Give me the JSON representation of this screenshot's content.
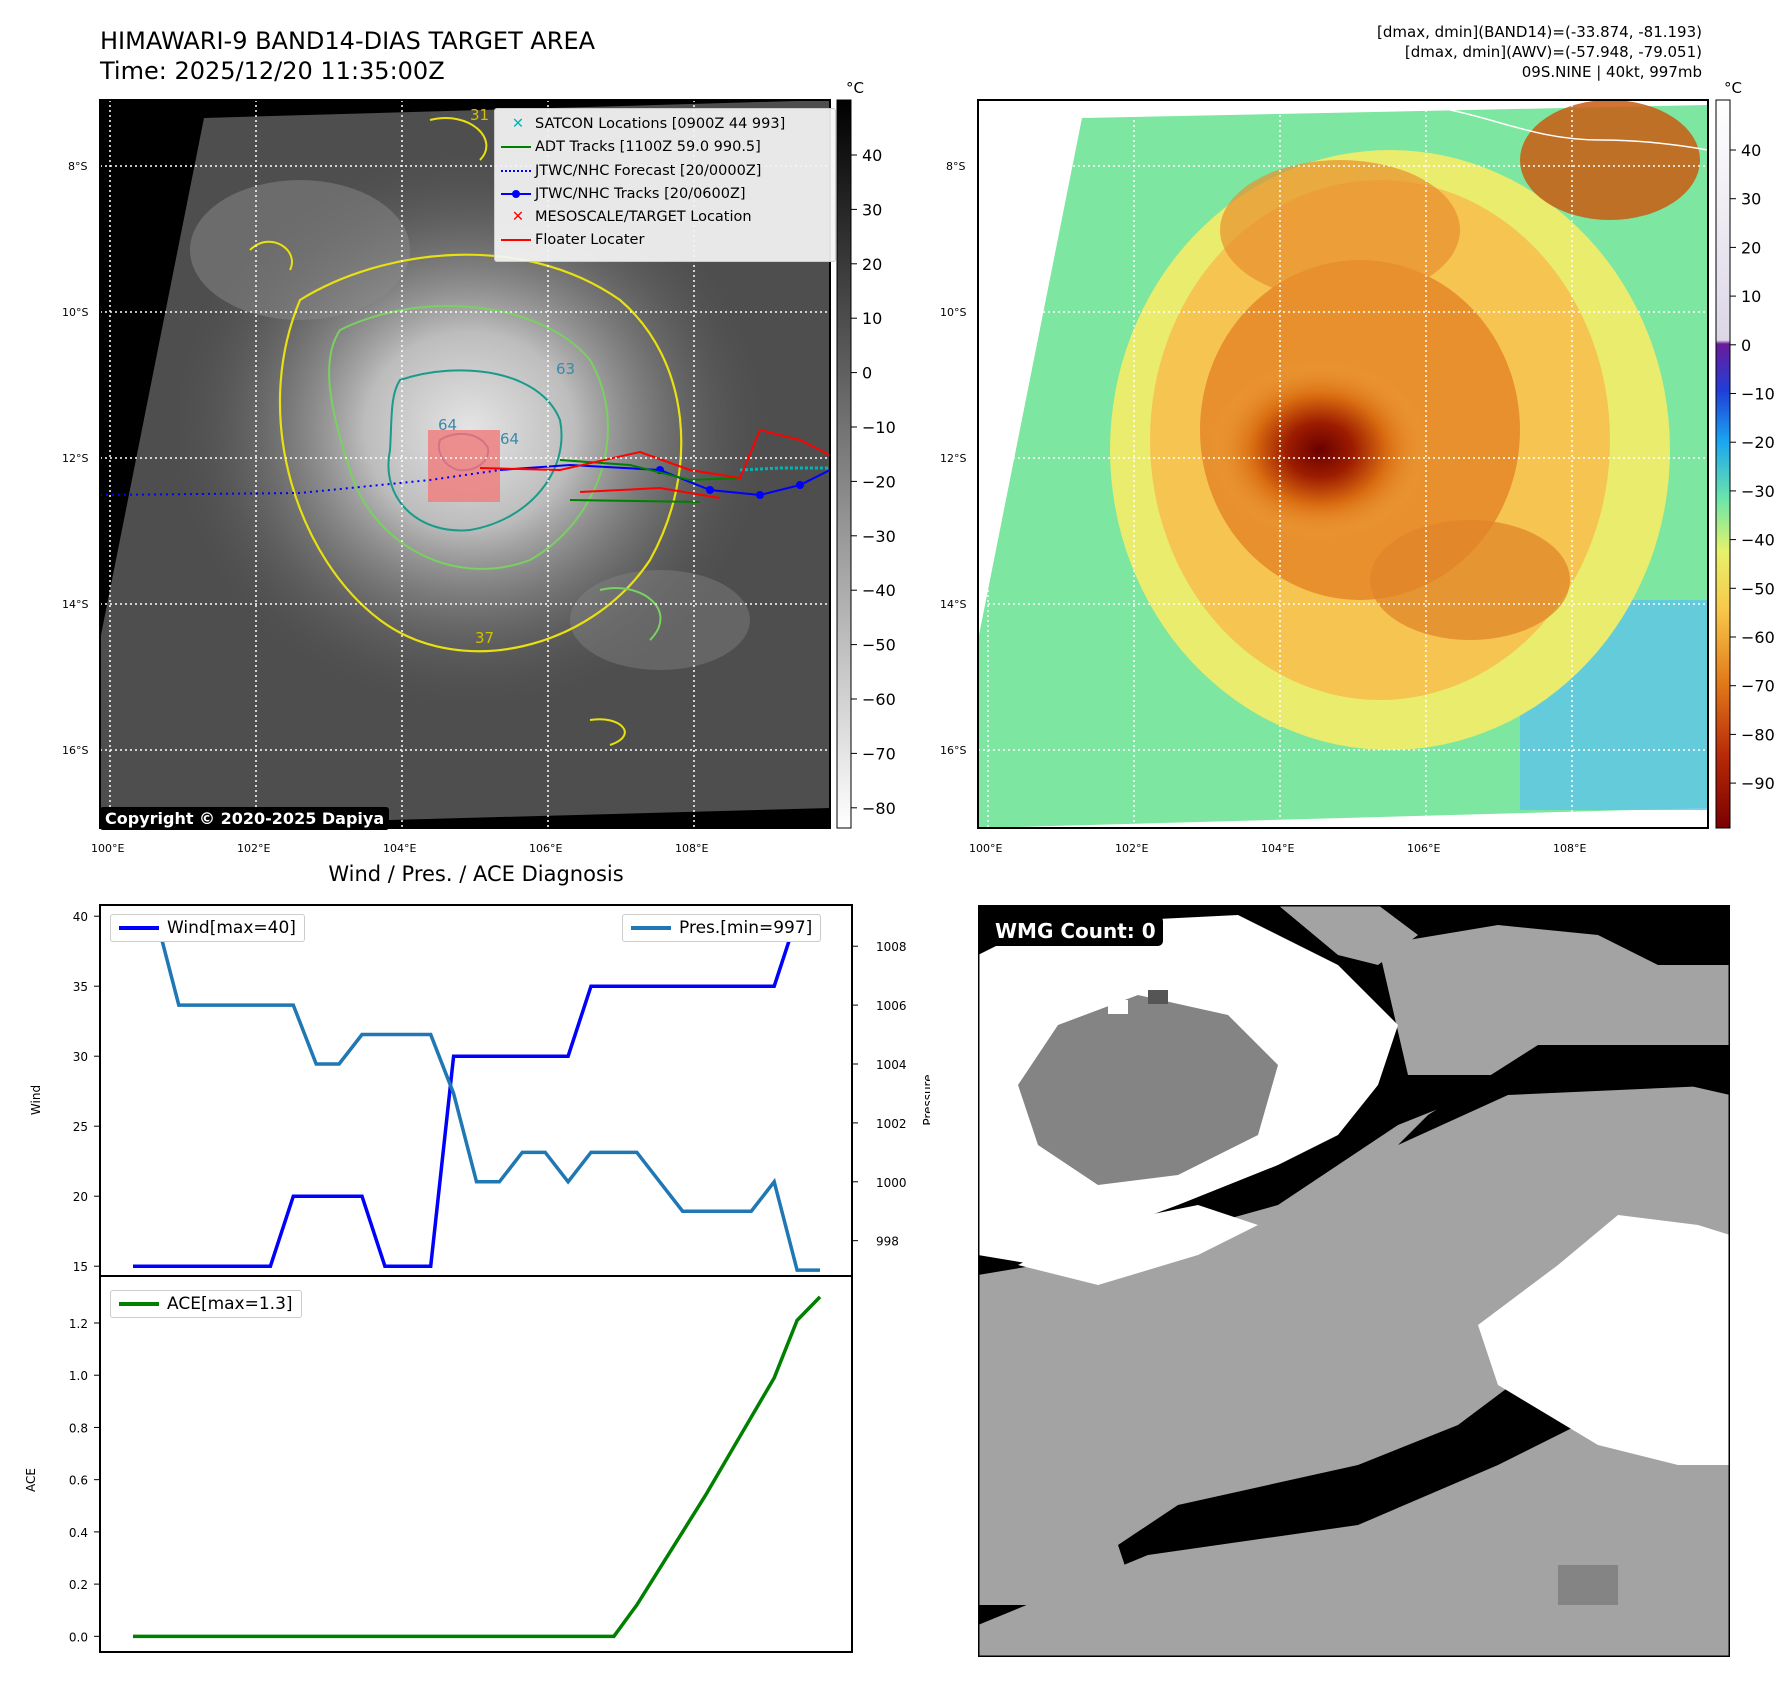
{
  "header": {
    "title": "HIMAWARI-9 BAND14-DIAS TARGET AREA",
    "time": "Time: 2025/12/20 11:35:00Z",
    "stat1": "[dmax, dmin](BAND14)=(-33.874, -81.193)",
    "stat2": "[dmax, dmin](AWV)=(-57.948, -79.051)",
    "stat3": "09S.NINE | 40kt, 997mb"
  },
  "map": {
    "unit": "°C",
    "lat_labels": [
      "8°S",
      "10°S",
      "12°S",
      "14°S",
      "16°S"
    ],
    "lon_labels": [
      "100°E",
      "102°E",
      "104°E",
      "106°E",
      "108°E"
    ],
    "gray_ticks": [
      "40",
      "30",
      "20",
      "10",
      "0",
      "−10",
      "−20",
      "−30",
      "−40",
      "−50",
      "−60",
      "−70",
      "−80"
    ],
    "color_ticks": [
      "40",
      "30",
      "20",
      "10",
      "0",
      "−10",
      "−20",
      "−30",
      "−40",
      "−50",
      "−60",
      "−70",
      "−80",
      "−90"
    ],
    "copyright": "Copyright © 2020-2025 Dapiya",
    "contour_labels": [
      "64",
      "64",
      "63",
      "31",
      "37"
    ],
    "legend": [
      {
        "label": "SATCON Locations [0900Z 44 993]",
        "color": "#00b5b5",
        "marker": "x"
      },
      {
        "label": "ADT Tracks [1100Z 59.0 990.5]",
        "color": "#008000",
        "marker": "line"
      },
      {
        "label": "JTWC/NHC Forecast [20/0000Z]",
        "color": "#0000ff",
        "marker": "dotted"
      },
      {
        "label": "JTWC/NHC Tracks [20/0600Z]",
        "color": "#0000ff",
        "marker": "line-dot"
      },
      {
        "label": "MESOSCALE/TARGET Location",
        "color": "#ff0000",
        "marker": "x"
      },
      {
        "label": "Floater Locater",
        "color": "#ff0000",
        "marker": "line"
      }
    ]
  },
  "wmg": {
    "label": "WMG Count: 0"
  },
  "chart_data": [
    {
      "type": "line",
      "title": "Wind / Pres. / ACE Diagnosis",
      "ylabel": "Wind",
      "y2label": "Pressure",
      "ylim": [
        14.3,
        40.8
      ],
      "y2lim": [
        996.8,
        1009.4
      ],
      "yticks": [
        15,
        20,
        25,
        30,
        35,
        40
      ],
      "y2ticks": [
        998,
        1000,
        1002,
        1004,
        1006,
        1008
      ],
      "series": [
        {
          "name": "Wind[max=40]",
          "color": "#0000ff",
          "values": [
            15,
            15,
            15,
            15,
            15,
            15,
            15,
            20,
            20,
            20,
            20,
            15,
            15,
            15,
            30,
            30,
            30,
            30,
            30,
            30,
            35,
            35,
            35,
            35,
            35,
            35,
            35,
            35,
            35,
            40,
            40
          ]
        },
        {
          "name": "Pres.[min=997]",
          "color": "#1f77b4",
          "values": [
            1009,
            1009,
            1006,
            1006,
            1006,
            1006,
            1006,
            1006,
            1004,
            1004,
            1005,
            1005,
            1005,
            1005,
            1003,
            1000,
            1000,
            1001,
            1001,
            1000,
            1001,
            1001,
            1001,
            1000,
            999,
            999,
            999,
            999,
            1000,
            997,
            997
          ]
        }
      ]
    },
    {
      "type": "line",
      "ylabel": "ACE",
      "ylim": [
        -0.06,
        1.38
      ],
      "yticks": [
        "0.0",
        "0.2",
        "0.4",
        "0.6",
        "0.8",
        "1.0",
        "1.2"
      ],
      "series": [
        {
          "name": "ACE[max=1.3]",
          "color": "#008000",
          "values": [
            0,
            0,
            0,
            0,
            0,
            0,
            0,
            0,
            0,
            0,
            0,
            0,
            0,
            0,
            0,
            0,
            0,
            0,
            0,
            0,
            0,
            0,
            0.12,
            0.26,
            0.4,
            0.54,
            0.69,
            0.84,
            0.99,
            1.21,
            1.3
          ]
        }
      ]
    }
  ]
}
